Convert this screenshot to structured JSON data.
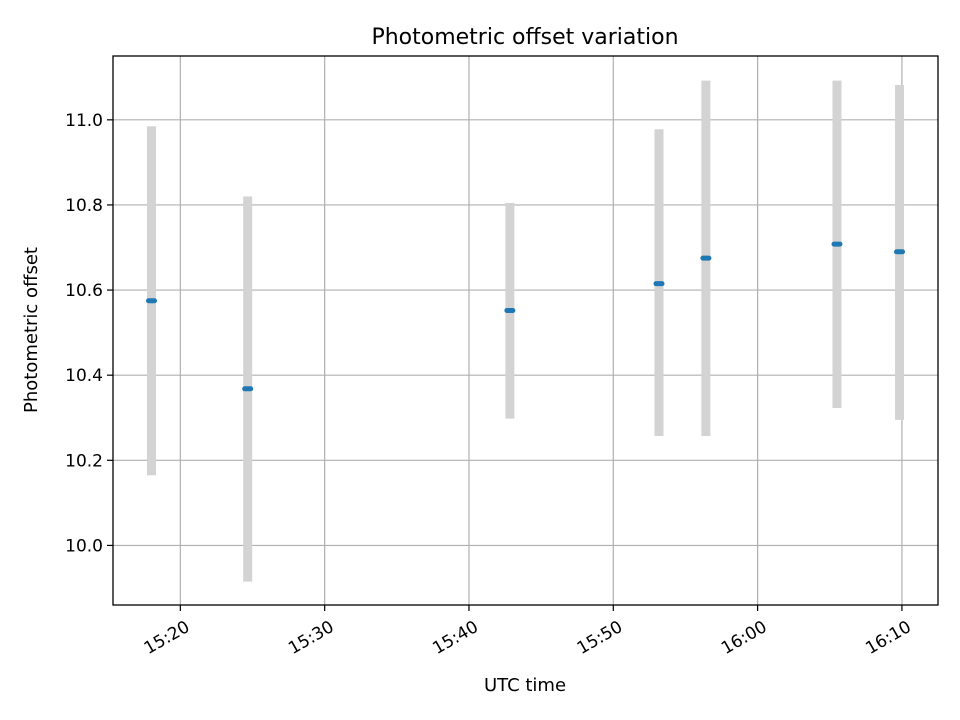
{
  "chart_data": {
    "type": "scatter",
    "title": "Photometric offset variation",
    "xlabel": "UTC time",
    "ylabel": "Photometric offset",
    "x_ticks": [
      "15:20",
      "15:30",
      "15:40",
      "15:50",
      "16:00",
      "16:10"
    ],
    "y_ticks": [
      10.0,
      10.2,
      10.4,
      10.6,
      10.8,
      11.0
    ],
    "xlim": [
      "15:15:20",
      "16:12:30"
    ],
    "ylim": [
      9.86,
      11.15
    ],
    "grid": true,
    "legend": "none",
    "series": [
      {
        "x": [
          "15:18:00",
          "15:24:40",
          "15:42:50",
          "15:53:10",
          "15:56:25",
          "16:05:30",
          "16:09:50"
        ],
        "y": [
          10.575,
          10.368,
          10.552,
          10.615,
          10.675,
          10.708,
          10.69
        ],
        "yerr_low": [
          10.165,
          9.915,
          10.298,
          10.257,
          10.257,
          10.323,
          10.295
        ],
        "yerr_high": [
          10.985,
          10.82,
          10.805,
          10.978,
          11.092,
          11.092,
          11.082
        ],
        "marker_color": "#1f77b4",
        "errorbar_color": "#d3d3d3"
      }
    ]
  }
}
